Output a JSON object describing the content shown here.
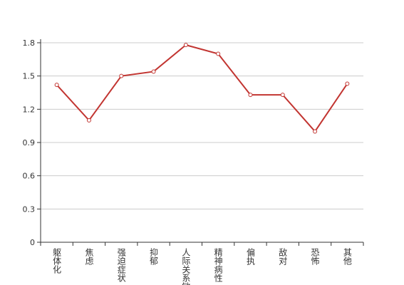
{
  "chart_data": {
    "type": "line",
    "categories": [
      "躯体化",
      "焦虑",
      "强迫症状",
      "抑郁",
      "人际关系敏感",
      "精神病性",
      "偏执",
      "敌对",
      "恐怖",
      "其他"
    ],
    "series": [
      {
        "color": "#c23531",
        "values": [
          1.42,
          1.1,
          1.5,
          1.54,
          1.78,
          1.7,
          1.33,
          1.33,
          1.0,
          1.43
        ]
      }
    ],
    "ylim": [
      0,
      1.8
    ],
    "yticks": [
      0,
      0.3,
      0.6,
      0.9,
      1.2,
      1.5,
      1.8
    ],
    "grid": true
  }
}
